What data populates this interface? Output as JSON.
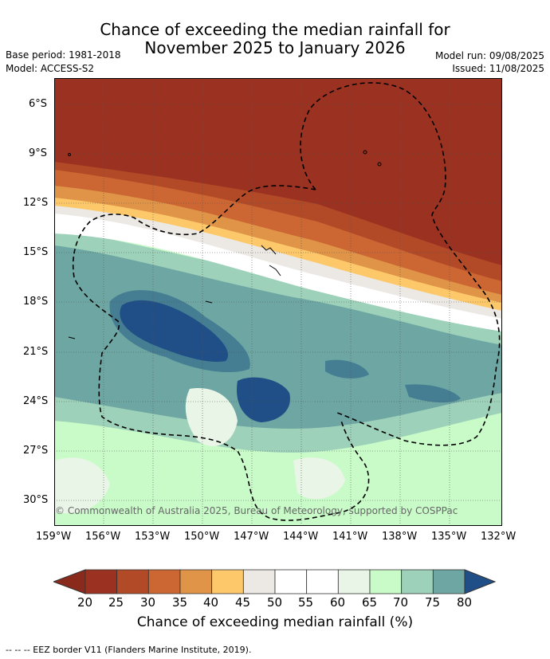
{
  "title": {
    "line1": "Chance of exceeding the median rainfall for",
    "line2": "November 2025 to January 2026"
  },
  "meta": {
    "base_period": "Base period: 1981-2018",
    "model": "Model: ACCESS-S2",
    "model_run": "Model run: 09/08/2025",
    "issued": "Issued: 11/08/2025"
  },
  "map": {
    "lat_labels": [
      "6°S",
      "9°S",
      "12°S",
      "15°S",
      "18°S",
      "21°S",
      "24°S",
      "27°S",
      "30°S"
    ],
    "lon_labels": [
      "159°W",
      "156°W",
      "153°W",
      "150°W",
      "147°W",
      "144°W",
      "141°W",
      "138°W",
      "135°W",
      "132°W"
    ],
    "copyright": "© Commonwealth of Australia 2025, Bureau of Meteorology, supported by COSPPac"
  },
  "colorbar": {
    "labels": [
      "20",
      "25",
      "30",
      "35",
      "40",
      "45",
      "50",
      "55",
      "60",
      "65",
      "70",
      "75",
      "80"
    ],
    "colors": [
      "#9b3221",
      "#b24a28",
      "#cc6633",
      "#e09448",
      "#fdc86a",
      "#ece9e4",
      "#ffffff",
      "#ffffff",
      "#e9f5e6",
      "#c8fbc8",
      "#9ed1b9",
      "#6da6a2",
      "#457d92"
    ],
    "under_color": "#8a2a1c",
    "over_color": "#1f4f86",
    "title": "Chance of exceeding median rainfall (%)"
  },
  "footnote": "-- -- -- EEZ border V11 (Flanders Marine Institute, 2019)."
}
